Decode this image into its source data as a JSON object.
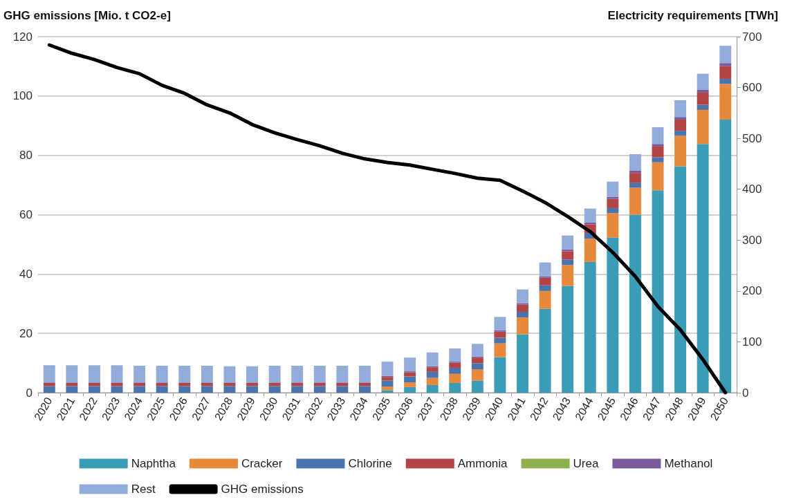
{
  "chart_data": {
    "type": "bar",
    "ylabel": "GHG emissions [Mio. t CO2-e]",
    "y2label": "Electricity requirements [TWh]",
    "categories": [
      "2020",
      "2021",
      "2022",
      "2023",
      "2024",
      "2025",
      "2026",
      "2027",
      "2028",
      "2029",
      "2030",
      "2031",
      "2032",
      "2033",
      "2034",
      "2035",
      "2036",
      "2037",
      "2038",
      "2039",
      "2040",
      "2041",
      "2042",
      "2043",
      "2044",
      "2045",
      "2046",
      "2047",
      "2048",
      "2049",
      "2050"
    ],
    "stacked": true,
    "series": [
      {
        "name": "Naphtha",
        "color": "#3a9cb5",
        "axis": "y2",
        "values": [
          0,
          0,
          0,
          0,
          0,
          0,
          0,
          0,
          0,
          0,
          0,
          0,
          0,
          0,
          0,
          5,
          11,
          15,
          19,
          24,
          70,
          115,
          165,
          210,
          257,
          305,
          350,
          398,
          445,
          489,
          537
        ]
      },
      {
        "name": "Cracker",
        "color": "#e8883a",
        "axis": "y2",
        "values": [
          0,
          0,
          0,
          0,
          0,
          0,
          0,
          0,
          0,
          0,
          0,
          0,
          0,
          0,
          0,
          7,
          9,
          14,
          18,
          22,
          27,
          33,
          35,
          41,
          46,
          48,
          53,
          55,
          60,
          67,
          70
        ]
      },
      {
        "name": "Chlorine",
        "color": "#4a74ad",
        "axis": "y2",
        "values": [
          13,
          13,
          13,
          13,
          13,
          13,
          13,
          13,
          13,
          13,
          13,
          13,
          13,
          13,
          13,
          12,
          12,
          12,
          12,
          12,
          11,
          11,
          11,
          11,
          11,
          10,
          10,
          10,
          10,
          10,
          10
        ]
      },
      {
        "name": "Ammonia",
        "color": "#b34545",
        "axis": "y2",
        "values": [
          6,
          6,
          6,
          6,
          6,
          6,
          6,
          6,
          6,
          6,
          6,
          6,
          6,
          6,
          6,
          7,
          8,
          9,
          10,
          11,
          12,
          14,
          15,
          16,
          17,
          18,
          19,
          21,
          22,
          24,
          25
        ]
      },
      {
        "name": "Urea",
        "color": "#8fb050",
        "axis": "y2",
        "values": [
          0,
          0,
          0,
          0,
          0,
          0,
          0,
          0,
          0,
          0,
          0,
          0,
          0,
          0,
          0,
          0,
          0,
          0,
          0,
          0,
          0,
          0,
          0,
          0,
          0,
          0,
          0,
          0,
          0,
          0,
          0
        ]
      },
      {
        "name": "Methanol",
        "color": "#7a5b9c",
        "axis": "y2",
        "values": [
          1,
          1,
          1,
          1,
          1,
          1,
          1,
          1,
          1,
          1,
          1,
          1,
          1,
          1,
          1,
          2,
          2,
          2,
          2,
          2,
          3,
          3,
          3,
          4,
          4,
          4,
          5,
          5,
          5,
          6,
          6
        ]
      },
      {
        "name": "Rest",
        "color": "#94acd9",
        "axis": "y2",
        "values": [
          34,
          34,
          34,
          34,
          33,
          33,
          33,
          33,
          32,
          32,
          33,
          33,
          33,
          33,
          33,
          28,
          27,
          27,
          26,
          25,
          26,
          27,
          27,
          27,
          27,
          30,
          32,
          33,
          33,
          31,
          34
        ]
      },
      {
        "name": "GHG emissions",
        "type": "line",
        "color": "#000000",
        "axis": "y",
        "values": [
          117.2,
          114.4,
          112.3,
          109.6,
          107.5,
          103.6,
          100.9,
          97,
          94.3,
          90.4,
          87.6,
          85.3,
          83.2,
          80.7,
          78.8,
          77.6,
          76.7,
          75.3,
          73.9,
          72.3,
          71.6,
          68,
          64.1,
          59.4,
          54.3,
          47.3,
          39.2,
          29.1,
          21.2,
          11.2,
          0
        ]
      }
    ],
    "ylim": [
      0,
      120
    ],
    "yticks": [
      0,
      20,
      40,
      60,
      80,
      100,
      120
    ],
    "y2lim": [
      0,
      700
    ],
    "y2ticks": [
      0,
      100,
      200,
      300,
      400,
      500,
      600,
      700
    ],
    "grid": "y",
    "legend": "bottom",
    "marker": "none",
    "line_style": "solid"
  }
}
